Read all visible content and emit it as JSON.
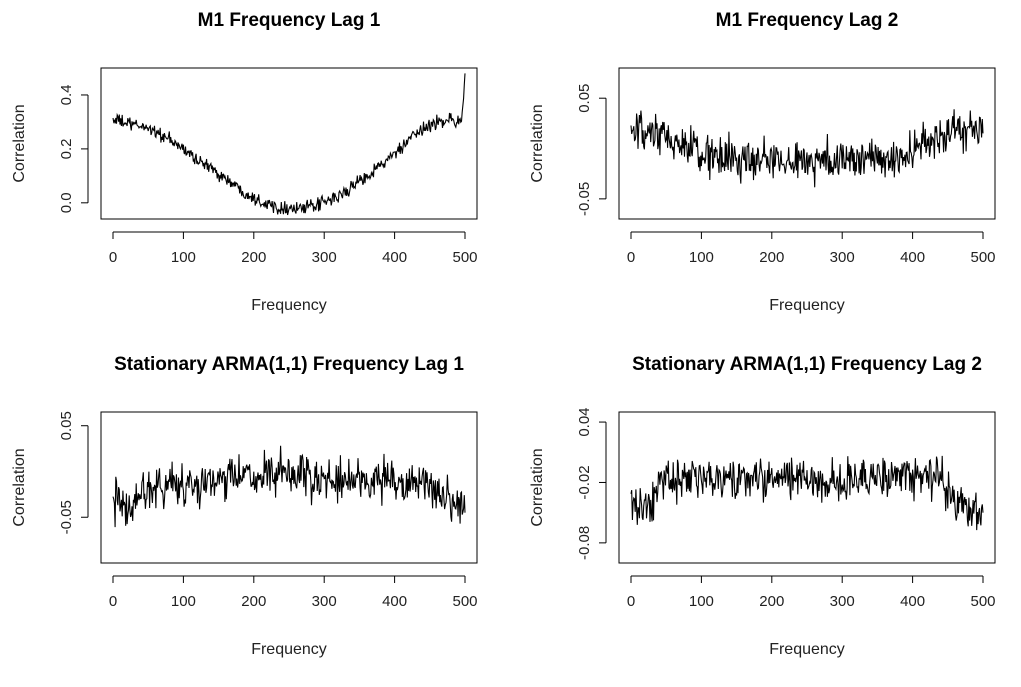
{
  "chart_data": [
    {
      "type": "line",
      "title": "M1 Frequency Lag 1",
      "xlabel": "Frequency",
      "ylabel": "Correlation",
      "xlim": [
        0,
        500
      ],
      "ylim": [
        -0.06,
        0.5
      ],
      "xticks": [
        0,
        100,
        200,
        300,
        400,
        500
      ],
      "yticks": [
        0.0,
        0.2,
        0.4
      ],
      "ytick_labels": [
        "0.0",
        "0.2",
        "0.4"
      ],
      "grid": false,
      "series": [
        {
          "x": [
            0,
            25,
            50,
            75,
            100,
            125,
            150,
            175,
            200,
            225,
            250,
            275,
            300,
            325,
            350,
            375,
            400,
            425,
            450,
            475,
            495,
            500
          ],
          "values": [
            0.31,
            0.29,
            0.28,
            0.24,
            0.2,
            0.15,
            0.11,
            0.06,
            0.02,
            -0.01,
            -0.02,
            -0.02,
            0.0,
            0.03,
            0.08,
            0.13,
            0.18,
            0.24,
            0.29,
            0.31,
            0.3,
            0.48
          ],
          "noise": 0.022,
          "samples": 500
        }
      ]
    },
    {
      "type": "line",
      "title": "M1 Frequency Lag 2",
      "xlabel": "Frequency",
      "ylabel": "Correlation",
      "xlim": [
        0,
        500
      ],
      "ylim": [
        -0.07,
        0.08
      ],
      "xticks": [
        0,
        100,
        200,
        300,
        400,
        500
      ],
      "yticks": [
        -0.05,
        0.05
      ],
      "ytick_labels": [
        "-0.05",
        "0.05"
      ],
      "grid": false,
      "series": [
        {
          "x": [
            0,
            50,
            100,
            150,
            200,
            250,
            300,
            350,
            400,
            430,
            460,
            500
          ],
          "values": [
            0.015,
            0.01,
            -0.005,
            -0.012,
            -0.012,
            -0.012,
            -0.01,
            -0.012,
            -0.005,
            0.01,
            0.02,
            0.015
          ],
          "noise": 0.018,
          "samples": 500
        }
      ]
    },
    {
      "type": "line",
      "title": "Stationary ARMA(1,1) Frequency Lag 1",
      "xlabel": "Frequency",
      "ylabel": "Correlation",
      "xlim": [
        0,
        500
      ],
      "ylim": [
        -0.1,
        0.065
      ],
      "xticks": [
        0,
        100,
        200,
        300,
        400,
        500
      ],
      "yticks": [
        -0.05,
        0.05
      ],
      "ytick_labels": [
        "-0.05",
        "0.05"
      ],
      "grid": false,
      "series": [
        {
          "x": [
            0,
            20,
            40,
            60,
            100,
            150,
            200,
            250,
            300,
            350,
            400,
            450,
            480,
            500
          ],
          "values": [
            -0.03,
            -0.045,
            -0.02,
            -0.015,
            -0.015,
            -0.01,
            -0.005,
            -0.005,
            -0.01,
            -0.01,
            -0.01,
            -0.015,
            -0.035,
            -0.045
          ],
          "noise": 0.02,
          "samples": 500
        }
      ]
    },
    {
      "type": "line",
      "title": "Stationary ARMA(1,1) Frequency Lag 2",
      "xlabel": "Frequency",
      "ylabel": "Correlation",
      "xlim": [
        0,
        500
      ],
      "ylim": [
        -0.1,
        0.05
      ],
      "xticks": [
        0,
        100,
        200,
        300,
        400,
        500
      ],
      "yticks": [
        -0.08,
        -0.02,
        0.04
      ],
      "ytick_labels": [
        "-0.08",
        "-0.02",
        "0.04"
      ],
      "grid": false,
      "series": [
        {
          "x": [
            0,
            15,
            30,
            40,
            60,
            100,
            150,
            200,
            250,
            300,
            350,
            400,
            440,
            460,
            480,
            500
          ],
          "values": [
            -0.03,
            -0.045,
            -0.05,
            -0.015,
            -0.015,
            -0.02,
            -0.018,
            -0.015,
            -0.018,
            -0.018,
            -0.015,
            -0.015,
            -0.015,
            -0.04,
            -0.045,
            -0.05
          ],
          "noise": 0.018,
          "samples": 500
        }
      ]
    }
  ]
}
